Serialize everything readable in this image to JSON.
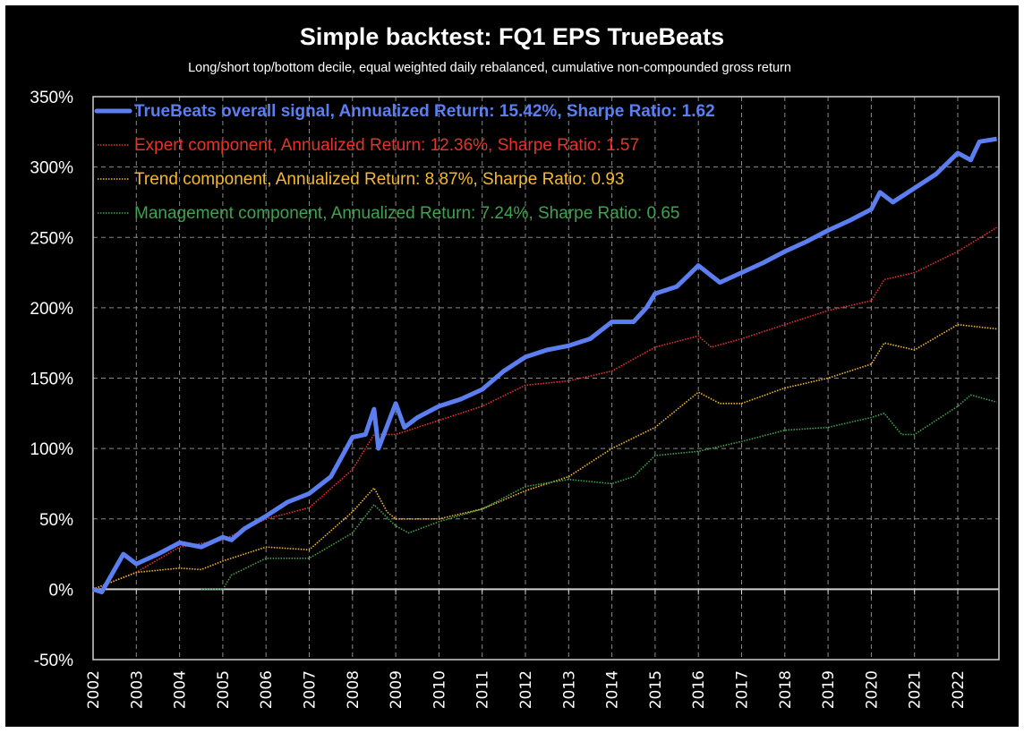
{
  "chart_data": {
    "type": "line",
    "title": "Simple backtest: FQ1 EPS TrueBeats",
    "subtitle": "Long/short top/bottom decile, equal weighted daily rebalanced, cumulative non-compounded gross return",
    "xlabel": "",
    "ylabel": "",
    "xlim": [
      2002,
      2023
    ],
    "ylim": [
      -50,
      350
    ],
    "x_ticks": [
      "2002",
      "2003",
      "2004",
      "2005",
      "2006",
      "2007",
      "2008",
      "2009",
      "2010",
      "2011",
      "2012",
      "2013",
      "2014",
      "2015",
      "2016",
      "2017",
      "2018",
      "2019",
      "2020",
      "2021",
      "2022"
    ],
    "y_ticks": [
      "-50%",
      "0%",
      "50%",
      "100%",
      "150%",
      "200%",
      "250%",
      "300%",
      "350%"
    ],
    "y_tick_values": [
      -50,
      0,
      50,
      100,
      150,
      200,
      250,
      300,
      350
    ],
    "grid": true,
    "legend_position": "top-left",
    "background": "#000000",
    "series": [
      {
        "name": "TrueBeats overall signal, Annualized Return: 15.42%, Sharpe Ratio: 1.62",
        "color": "#5b7ff0",
        "style": "thick-solid",
        "x": [
          2002.0,
          2002.2,
          2002.7,
          2003.0,
          2003.5,
          2004.0,
          2004.5,
          2005.0,
          2005.2,
          2005.5,
          2006.0,
          2006.5,
          2007.0,
          2007.5,
          2008.0,
          2008.3,
          2008.5,
          2008.6,
          2009.0,
          2009.2,
          2009.5,
          2010.0,
          2010.5,
          2011.0,
          2011.5,
          2012.0,
          2012.5,
          2013.0,
          2013.5,
          2014.0,
          2014.5,
          2014.8,
          2015.0,
          2015.5,
          2016.0,
          2016.5,
          2017.0,
          2017.5,
          2018.0,
          2018.5,
          2019.0,
          2019.5,
          2020.0,
          2020.2,
          2020.5,
          2021.0,
          2021.5,
          2022.0,
          2022.3,
          2022.5,
          2022.9
        ],
        "y": [
          0,
          -2,
          25,
          18,
          25,
          33,
          30,
          37,
          35,
          43,
          52,
          62,
          68,
          80,
          108,
          110,
          128,
          100,
          132,
          115,
          122,
          130,
          135,
          142,
          155,
          165,
          170,
          173,
          178,
          190,
          190,
          200,
          210,
          215,
          230,
          218,
          225,
          232,
          240,
          247,
          255,
          262,
          270,
          282,
          275,
          285,
          295,
          310,
          305,
          318,
          320
        ]
      },
      {
        "name": "Expert component, Annualized Return: 12.36%, Sharpe Ratio: 1.57",
        "color": "#e8322a",
        "style": "dotted",
        "x": [
          2002.0,
          2003.0,
          2004.0,
          2005.0,
          2006.0,
          2007.0,
          2008.0,
          2008.5,
          2009.0,
          2010.0,
          2011.0,
          2012.0,
          2013.0,
          2014.0,
          2015.0,
          2016.0,
          2016.3,
          2017.0,
          2018.0,
          2019.0,
          2020.0,
          2020.3,
          2021.0,
          2022.0,
          2022.9
        ],
        "y": [
          0,
          12,
          30,
          35,
          50,
          58,
          85,
          110,
          110,
          120,
          130,
          145,
          148,
          155,
          172,
          180,
          172,
          178,
          188,
          198,
          205,
          220,
          225,
          240,
          257
        ]
      },
      {
        "name": "Trend component, Annualized Return: 8.87%, Sharpe Ratio: 0.93",
        "color": "#f5b830",
        "style": "dotted",
        "x": [
          2002.0,
          2003.0,
          2004.0,
          2004.5,
          2005.0,
          2006.0,
          2007.0,
          2008.0,
          2008.5,
          2008.8,
          2009.0,
          2010.0,
          2011.0,
          2012.0,
          2013.0,
          2014.0,
          2015.0,
          2016.0,
          2016.5,
          2017.0,
          2018.0,
          2019.0,
          2020.0,
          2020.3,
          2021.0,
          2022.0,
          2022.9
        ],
        "y": [
          0,
          12,
          15,
          14,
          20,
          30,
          28,
          55,
          72,
          55,
          50,
          50,
          57,
          70,
          80,
          100,
          115,
          140,
          132,
          132,
          143,
          150,
          160,
          175,
          170,
          188,
          185
        ]
      },
      {
        "name": "Management component, Annualized Return: 7.24%, Sharpe Ratio: 0.65",
        "color": "#3fa34d",
        "style": "dotted",
        "x": [
          2004.5,
          2005.0,
          2005.2,
          2006.0,
          2007.0,
          2008.0,
          2008.5,
          2009.0,
          2009.3,
          2010.0,
          2011.0,
          2012.0,
          2013.0,
          2014.0,
          2014.5,
          2015.0,
          2016.0,
          2017.0,
          2018.0,
          2019.0,
          2020.0,
          2020.3,
          2020.7,
          2021.0,
          2022.0,
          2022.3,
          2022.9
        ],
        "y": [
          0,
          0,
          10,
          22,
          22,
          40,
          60,
          45,
          40,
          48,
          57,
          73,
          78,
          75,
          80,
          95,
          98,
          105,
          113,
          115,
          122,
          125,
          110,
          110,
          130,
          138,
          133
        ]
      }
    ]
  }
}
